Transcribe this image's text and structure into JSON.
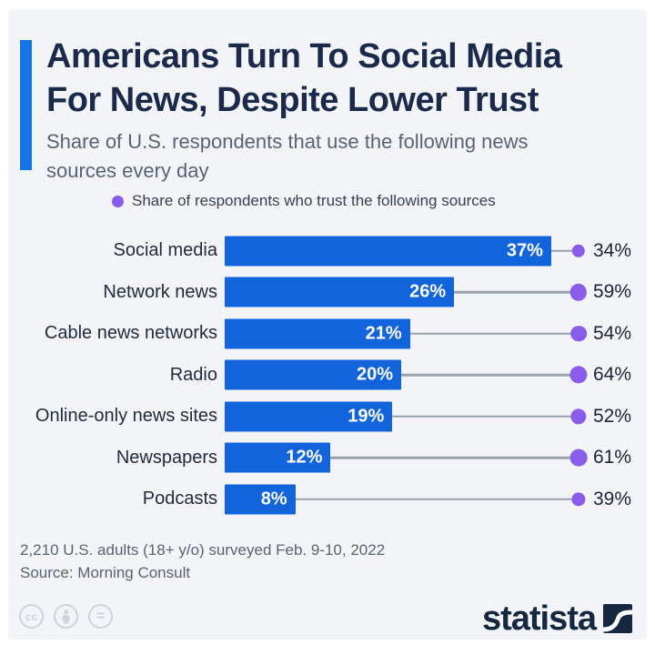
{
  "header": {
    "accent_color": "#1374e8",
    "title_lines": [
      "Americans Turn To Social Media",
      "For News, Despite Lower Trust"
    ],
    "subtitle": "Share of U.S. respondents that use the following news sources every day"
  },
  "legend": {
    "marker": "dot-icon",
    "marker_color": "#8a5cec",
    "label": "Share of respondents who trust the following sources"
  },
  "chart_data": {
    "type": "bar",
    "orientation": "horizontal",
    "title": "Americans Turn To Social Media For News, Despite Lower Trust",
    "categories": [
      "Social media",
      "Network news",
      "Cable news networks",
      "Radio",
      "Online-only news sites",
      "Newspapers",
      "Podcasts"
    ],
    "series": [
      {
        "name": "Share of U.S. respondents that use the following news sources every day",
        "style": "bar",
        "color": "#1164dc",
        "unit": "%",
        "values": [
          37,
          26,
          21,
          20,
          19,
          12,
          8
        ]
      },
      {
        "name": "Share of respondents who trust the following sources",
        "style": "dot",
        "color": "#8a5cec",
        "unit": "%",
        "values": [
          34,
          59,
          54,
          64,
          52,
          61,
          39
        ]
      }
    ],
    "xlim": [
      0,
      40
    ],
    "grid": false,
    "legend_position": "top",
    "connector_color": "#9aa2ac"
  },
  "footer": {
    "note_line1": "2,210 U.S. adults (18+ y/o) surveyed Feb. 9-10, 2022",
    "note_line2": "Source: Morning Consult",
    "license_icons": {
      "cc_label": "cc",
      "equals_label": "="
    }
  },
  "branding": {
    "logo_text": "statista",
    "logo_color": "#16283f"
  }
}
